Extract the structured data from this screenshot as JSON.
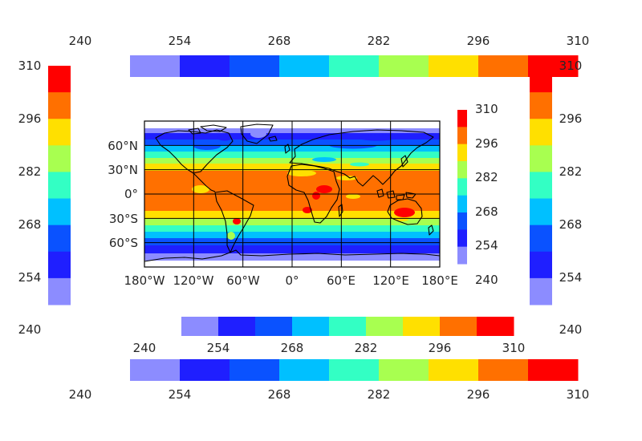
{
  "colors": [
    "#8c8cff",
    "#1f1fff",
    "#0a52ff",
    "#00c0ff",
    "#33ffc4",
    "#a8ff50",
    "#ffe000",
    "#ff7000",
    "#ff0000",
    "#ffffff"
  ],
  "colorbar_ticks": [
    "240",
    "254",
    "268",
    "282",
    "296",
    "310"
  ],
  "inset_ticks": [
    "310",
    "296",
    "282",
    "268",
    "254",
    "240"
  ],
  "lon_labels": [
    "180°W",
    "120°W",
    "60°W",
    "0°",
    "60°E",
    "120°E",
    "180°E"
  ],
  "lat_labels": [
    "60°N",
    "30°N",
    "0°",
    "30°S",
    "60°S"
  ],
  "chart_data": {
    "type": "heatmap",
    "projection": "cylindrical (plate carrée)",
    "field_range": [
      240,
      310
    ],
    "colorbar_levels": [
      240,
      254,
      268,
      282,
      296,
      310
    ],
    "bands": [
      {
        "from": 240,
        "to": 254,
        "color": "#8c8cff"
      },
      {
        "from": 254,
        "to": 261,
        "color": "#1f1fff"
      },
      {
        "from": 261,
        "to": 268,
        "color": "#0a52ff"
      },
      {
        "from": 268,
        "to": 275,
        "color": "#00c0ff"
      },
      {
        "from": 275,
        "to": 282,
        "color": "#33ffc4"
      },
      {
        "from": 282,
        "to": 289,
        "color": "#a8ff50"
      },
      {
        "from": 289,
        "to": 296,
        "color": "#ffe000"
      },
      {
        "from": 296,
        "to": 303,
        "color": "#ff7000"
      },
      {
        "from": 303,
        "to": 310,
        "color": "#ff0000"
      }
    ],
    "lon_range": [
      -180,
      180
    ],
    "lat_range": [
      -90,
      90
    ],
    "grid": true
  }
}
